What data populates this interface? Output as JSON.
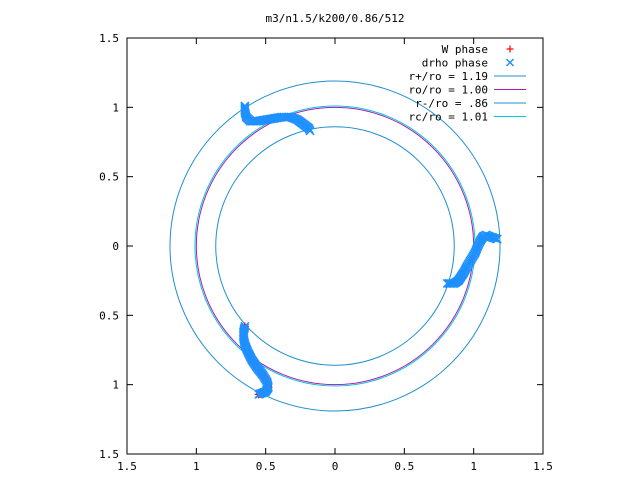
{
  "chart_data": {
    "type": "scatter",
    "title": "m3/n1.5/k200/0.86/512",
    "xlim": [
      -1.5,
      1.5
    ],
    "ylim": [
      -1.5,
      1.5
    ],
    "x_ticks": [
      "1.5",
      "1",
      "0.5",
      "0",
      "0.5",
      "1",
      "1.5"
    ],
    "y_ticks": [
      "1.5",
      "1",
      "0.5",
      "0",
      "0.5",
      "1",
      "1.5"
    ],
    "x_tick_values": [
      -1.5,
      -1,
      -0.5,
      0,
      0.5,
      1,
      1.5
    ],
    "y_tick_values": [
      1.5,
      1,
      0.5,
      0,
      -0.5,
      -1,
      -1.5
    ],
    "grid": false,
    "legend_position": "top-right",
    "colors": {
      "w_phase": "#ff0000",
      "drho_phase": "#1e90ff",
      "r_plus": "#1f8fd0",
      "ro": "#b01ab0",
      "r_minus": "#1f8fd0",
      "rc": "#00c8e0"
    },
    "circles": [
      {
        "name": "r+/ro = 1.19",
        "r": 1.19,
        "color": "#1f8fd0"
      },
      {
        "name": "ro/ro = 1.00",
        "r": 1.0,
        "color": "#b01ab0"
      },
      {
        "name": "r-/ro = .86",
        "r": 0.86,
        "color": "#1f8fd0"
      },
      {
        "name": "rc/ro = 1.01",
        "r": 1.01,
        "color": "#00c8e0"
      }
    ],
    "series": [
      {
        "name": "W phase",
        "marker": "+",
        "color": "#ff0000",
        "arms": [
          [
            [
              -0.65,
              -0.58
            ],
            [
              -0.66,
              -0.62
            ],
            [
              -0.66,
              -0.66
            ],
            [
              -0.65,
              -0.71
            ],
            [
              -0.63,
              -0.76
            ],
            [
              -0.6,
              -0.82
            ],
            [
              -0.56,
              -0.88
            ],
            [
              -0.52,
              -0.93
            ],
            [
              -0.49,
              -0.98
            ],
            [
              -0.48,
              -1.02
            ],
            [
              -0.5,
              -1.05
            ],
            [
              -0.55,
              -1.07
            ]
          ]
        ]
      },
      {
        "name": "drho phase",
        "marker": "x",
        "color": "#1e90ff",
        "arms": [
          [
            [
              -0.65,
              1.01
            ],
            [
              -0.65,
              0.97
            ],
            [
              -0.64,
              0.93
            ],
            [
              -0.61,
              0.9
            ],
            [
              -0.56,
              0.9
            ],
            [
              -0.5,
              0.91
            ],
            [
              -0.44,
              0.92
            ],
            [
              -0.38,
              0.93
            ],
            [
              -0.32,
              0.93
            ],
            [
              -0.27,
              0.91
            ],
            [
              -0.23,
              0.88
            ],
            [
              -0.19,
              0.85
            ],
            [
              -0.18,
              0.83
            ]
          ],
          [
            [
              1.17,
              0.05
            ],
            [
              1.14,
              0.06
            ],
            [
              1.11,
              0.07
            ],
            [
              1.09,
              0.08
            ],
            [
              1.07,
              0.07
            ],
            [
              1.05,
              0.04
            ],
            [
              1.03,
              0.0
            ],
            [
              1.01,
              -0.05
            ],
            [
              0.98,
              -0.1
            ],
            [
              0.95,
              -0.15
            ],
            [
              0.93,
              -0.19
            ],
            [
              0.91,
              -0.22
            ],
            [
              0.89,
              -0.25
            ],
            [
              0.86,
              -0.27
            ],
            [
              0.81,
              -0.27
            ]
          ],
          [
            [
              -0.65,
              -0.58
            ],
            [
              -0.66,
              -0.62
            ],
            [
              -0.66,
              -0.66
            ],
            [
              -0.65,
              -0.71
            ],
            [
              -0.63,
              -0.76
            ],
            [
              -0.6,
              -0.82
            ],
            [
              -0.56,
              -0.88
            ],
            [
              -0.52,
              -0.93
            ],
            [
              -0.49,
              -0.98
            ],
            [
              -0.48,
              -1.02
            ],
            [
              -0.5,
              -1.05
            ],
            [
              -0.55,
              -1.07
            ]
          ]
        ]
      }
    ],
    "legend": [
      {
        "label": "W phase",
        "type": "marker",
        "marker": "+",
        "color": "#ff0000"
      },
      {
        "label": "drho phase",
        "type": "marker",
        "marker": "x",
        "color": "#1e90ff"
      },
      {
        "label": "r+/ro = 1.19",
        "type": "line",
        "color": "#1f8fd0"
      },
      {
        "label": "ro/ro = 1.00",
        "type": "line",
        "color": "#b01ab0"
      },
      {
        "label": "r-/ro = .86",
        "type": "line",
        "color": "#1f8fd0"
      },
      {
        "label": "rc/ro = 1.01",
        "type": "line",
        "color": "#00c8e0"
      }
    ]
  }
}
